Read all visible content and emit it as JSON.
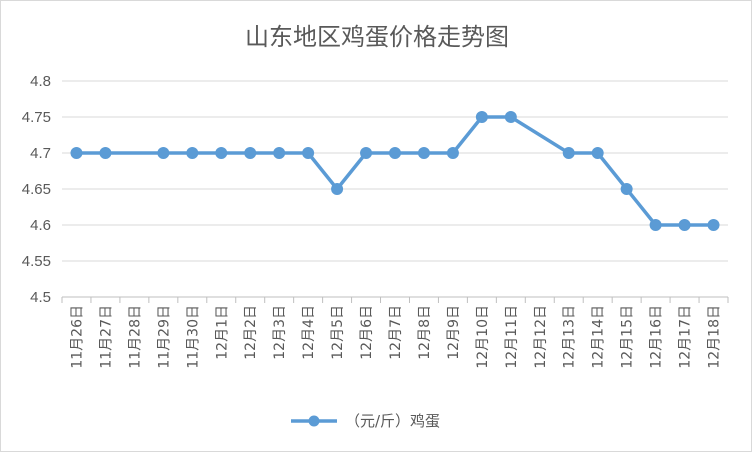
{
  "chart_data": {
    "type": "line",
    "title": "山东地区鸡蛋价格走势图",
    "categories": [
      "11月26日",
      "11月27日",
      "11月28日",
      "11月29日",
      "11月30日",
      "12月1日",
      "12月2日",
      "12月3日",
      "12月4日",
      "12月5日",
      "12月6日",
      "12月7日",
      "12月8日",
      "12月9日",
      "12月10日",
      "12月11日",
      "12月12日",
      "12月13日",
      "12月14日",
      "12月15日",
      "12月16日",
      "12月17日",
      "12月18日"
    ],
    "series": [
      {
        "name": "（元/斤）鸡蛋",
        "color": "#5b9bd5",
        "values": [
          4.7,
          4.7,
          null,
          4.7,
          4.7,
          4.7,
          4.7,
          4.7,
          4.7,
          4.65,
          4.7,
          4.7,
          4.7,
          4.7,
          4.75,
          4.75,
          null,
          4.7,
          4.7,
          4.65,
          4.6,
          4.6,
          4.6
        ]
      }
    ],
    "yticks": [
      "4.5",
      "4.55",
      "4.6",
      "4.65",
      "4.7",
      "4.75",
      "4.8"
    ],
    "ylim": [
      4.5,
      4.8
    ],
    "grid": true,
    "legend": "bottom",
    "connect_gaps": true
  }
}
